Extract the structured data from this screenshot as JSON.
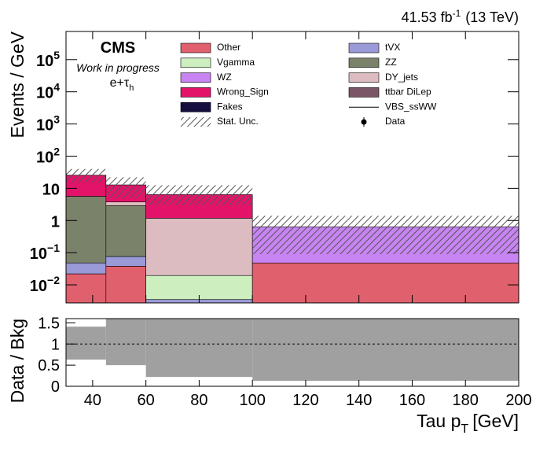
{
  "chart_data": {
    "type": "stacked_histogram",
    "lumi": "41.53 fb",
    "lumi_exp": "-1",
    "energy": "(13 TeV)",
    "experiment": "CMS",
    "status": "Work in progress",
    "channel": "e+τ",
    "channel_sub": "h",
    "ylabel": "Events / GeV",
    "xlabel": "Tau p",
    "xlabel_sub": "T",
    "xlabel_unit": "[GeV]",
    "bins": [
      30,
      45,
      60,
      100,
      200
    ],
    "xlim": [
      30,
      200
    ],
    "xticks": [
      40,
      60,
      80,
      100,
      120,
      140,
      160,
      180,
      200
    ],
    "log_y": true,
    "ylim": [
      0.00275,
      750000
    ],
    "yticks": [
      {
        "value": 0.01,
        "label": "10",
        "sup": "−2"
      },
      {
        "value": 0.1,
        "label": "10",
        "sup": "−1"
      },
      1,
      10,
      {
        "value": 100,
        "label": "10",
        "sup": "2"
      },
      {
        "value": 1000,
        "label": "10",
        "sup": "3"
      },
      {
        "value": 10000,
        "label": "10",
        "sup": "4"
      },
      {
        "value": 100000,
        "label": "10",
        "sup": "5"
      }
    ],
    "series": [
      {
        "name": "Other",
        "color": "#e0606e",
        "values": [
          0.022,
          0.038,
          0,
          0.048
        ]
      },
      {
        "name": "tVX",
        "color": "#9a9ad8",
        "values": [
          0.026,
          0.038,
          0.0035,
          0
        ]
      },
      {
        "name": "Vgamma",
        "color": "#cdefc0",
        "values": [
          0,
          0,
          0.016,
          0
        ]
      },
      {
        "name": "ZZ",
        "color": "#7b826a",
        "values": [
          5.6,
          2.8,
          0,
          0
        ]
      },
      {
        "name": "WZ",
        "color": "#c784f2",
        "values": [
          0,
          0,
          0,
          0.59
        ]
      },
      {
        "name": "DY_jets",
        "color": "#dcbcc0",
        "values": [
          0,
          0.9,
          1.16,
          0
        ]
      },
      {
        "name": "Wrong_Sign",
        "color": "#e4136a",
        "values": [
          20,
          9,
          5.2,
          0
        ]
      },
      {
        "name": "ttbar DiLep",
        "color": "#7a5667",
        "values": [
          0,
          0,
          0,
          0
        ]
      },
      {
        "name": "Fakes",
        "color": "#140f3e",
        "values": [
          0,
          0,
          0,
          0
        ]
      },
      {
        "name": "VBS_ssWW",
        "color": "#000000",
        "style": "line",
        "values": [
          null,
          null,
          null,
          null
        ]
      }
    ],
    "stat_unc": {
      "name": "Stat. Unc.",
      "color": "#555555",
      "low": [
        15,
        5,
        3,
        0.09
      ],
      "high": [
        40,
        22,
        12.5,
        1.4
      ]
    },
    "data": {
      "name": "Data",
      "color": "#000000",
      "values": [
        null,
        null,
        null,
        null
      ]
    },
    "ratio": {
      "ylabel": "Data / Bkg",
      "ylim": [
        0,
        1.6
      ],
      "yticks": [
        0,
        0.5,
        1,
        1.5
      ],
      "ref_line": 1,
      "color": "#a0a0a0",
      "unc_low": [
        0.63,
        0.5,
        0.22,
        0.13
      ],
      "unc_high": [
        1.41,
        1.6,
        1.6,
        1.6
      ]
    }
  }
}
